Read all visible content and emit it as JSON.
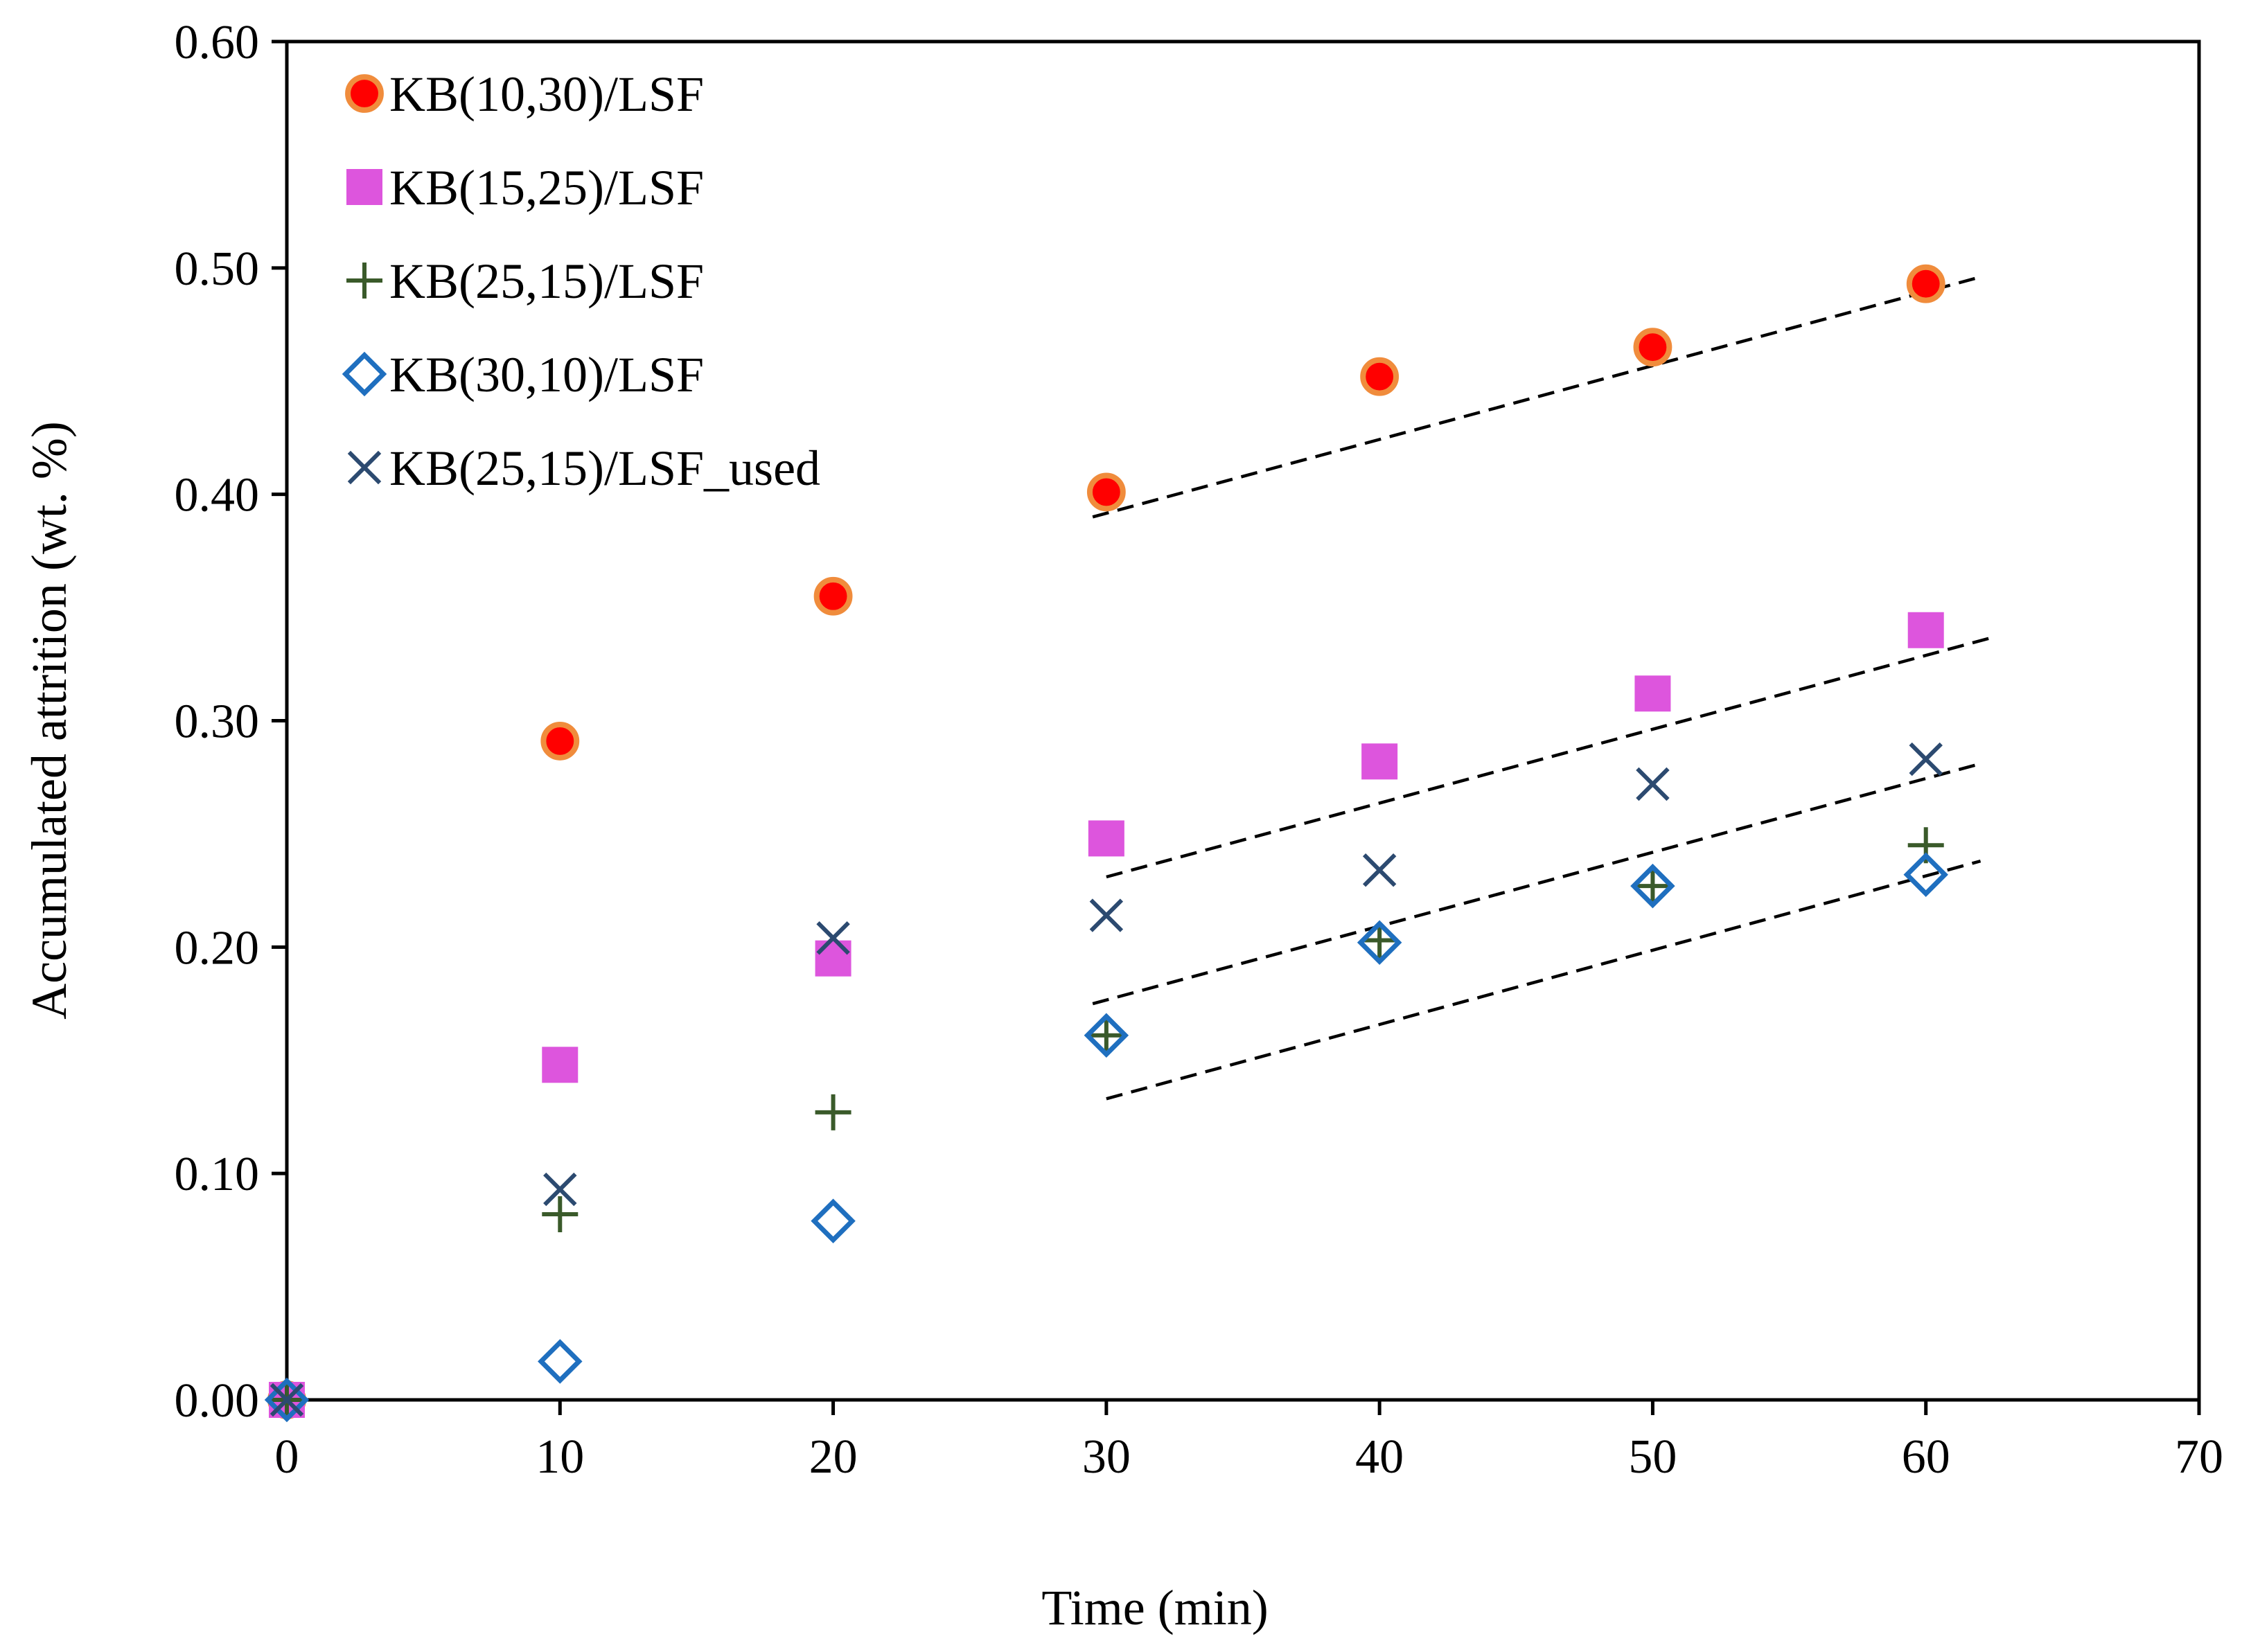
{
  "chart_data": {
    "type": "scatter",
    "title": "",
    "xlabel": "Time (min)",
    "ylabel": "Accumulated attrition (wt. %)",
    "xlim": [
      0,
      70
    ],
    "ylim": [
      0,
      0.6
    ],
    "grid": false,
    "legend_position": "top-left",
    "x_ticks": [
      "0",
      "10",
      "20",
      "30",
      "40",
      "50",
      "60",
      "70"
    ],
    "y_ticks": [
      "0.00",
      "0.10",
      "0.20",
      "0.30",
      "0.40",
      "0.50",
      "0.60"
    ],
    "series": [
      {
        "name": "KB(10,30)/LSF",
        "marker": "circle",
        "color": "#ff0000",
        "edge_color": "#f08c3c",
        "x": [
          0,
          10,
          20,
          30,
          40,
          50,
          60
        ],
        "y": [
          0.0,
          0.291,
          0.355,
          0.401,
          0.452,
          0.465,
          0.493
        ]
      },
      {
        "name": "KB(15,25)/LSF",
        "marker": "square",
        "color": "#dd55dd",
        "x": [
          0,
          10,
          20,
          30,
          40,
          50,
          60
        ],
        "y": [
          0.0,
          0.148,
          0.195,
          0.248,
          0.282,
          0.312,
          0.34
        ]
      },
      {
        "name": "KB(25,15)/LSF",
        "marker": "plus",
        "color": "#3a5a2a",
        "x": [
          0,
          10,
          20,
          30,
          40,
          50,
          60
        ],
        "y": [
          0.0,
          0.082,
          0.127,
          0.161,
          0.203,
          0.227,
          0.245
        ]
      },
      {
        "name": "KB(30,10)/LSF",
        "marker": "diamond-open",
        "color": "#1f6fbf",
        "x": [
          0,
          10,
          20,
          30,
          40,
          50,
          60
        ],
        "y": [
          0.0,
          0.017,
          0.079,
          0.161,
          0.202,
          0.227,
          0.232
        ]
      },
      {
        "name": "KB(25,15)/LSF_used",
        "marker": "x",
        "color": "#2c4a70",
        "x": [
          0,
          10,
          20,
          30,
          40,
          50,
          60
        ],
        "y": [
          0.0,
          0.093,
          0.204,
          0.214,
          0.234,
          0.272,
          0.283
        ]
      }
    ],
    "trend_lines": [
      {
        "style": "dashed",
        "color": "#000000",
        "x": [
          29.5,
          62
        ],
        "y": [
          0.39,
          0.496
        ]
      },
      {
        "style": "dashed",
        "color": "#000000",
        "x": [
          30,
          62.5
        ],
        "y": [
          0.231,
          0.337
        ]
      },
      {
        "style": "dashed",
        "color": "#000000",
        "x": [
          29.5,
          62
        ],
        "y": [
          0.175,
          0.281
        ]
      },
      {
        "style": "dashed",
        "color": "#000000",
        "x": [
          30,
          62
        ],
        "y": [
          0.133,
          0.238
        ]
      }
    ]
  }
}
